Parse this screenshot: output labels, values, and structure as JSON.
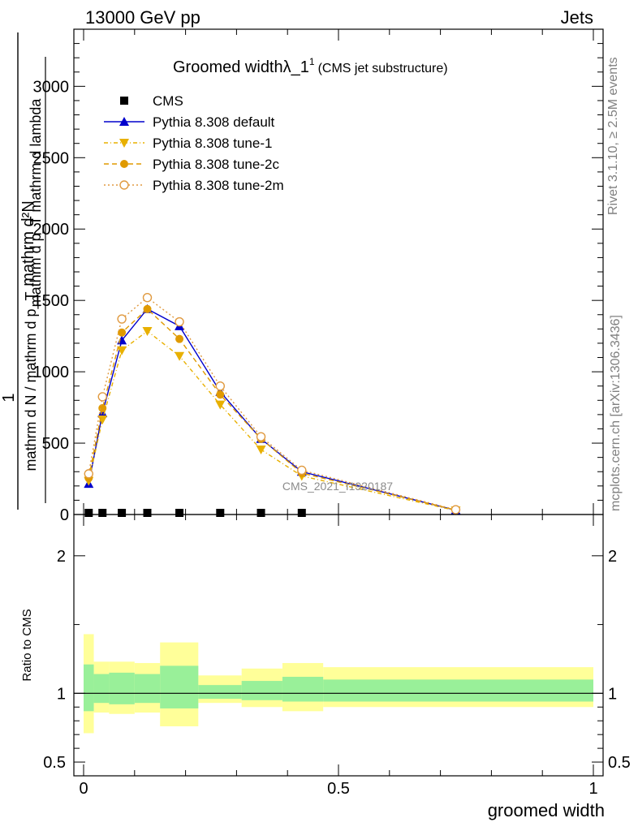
{
  "header": {
    "left": "13000 GeV pp",
    "right": "Jets"
  },
  "side": {
    "rivet": "Rivet 3.1.10, ≥ 2.5M events",
    "source": "mcplots.cern.ch [arXiv:1306.3436]"
  },
  "watermark": "CMS_2021_I1920187",
  "chart_data": [
    {
      "panel": "main",
      "type": "line",
      "title": "Groomed widthλ_1",
      "title_sup": "1",
      "title_note": "(CMS jet substructure)",
      "ylabel_numerator": "mathrm d²N",
      "ylabel_denominator": "mathrm d p_T mathrm d lambda",
      "ylabel_factor": "1",
      "ylabel_lower": "mathrm d N / mathrm d p_T",
      "xlim": [
        0,
        1
      ],
      "ylim": [
        0,
        3400
      ],
      "yticks": [
        0,
        500,
        1000,
        1500,
        2000,
        2500,
        3000
      ],
      "ytick_labels": [
        "0",
        "500",
        "1000",
        "1500",
        "2000",
        "2500",
        "3000"
      ],
      "series": [
        {
          "name": "CMS",
          "color": "#000000",
          "marker": "square",
          "dash": "",
          "x": [
            0.01,
            0.037,
            0.075,
            0.125,
            0.188,
            0.268,
            0.348,
            0.428
          ],
          "y": [
            0,
            0,
            0,
            0,
            0,
            0,
            0,
            0
          ]
        },
        {
          "name": "Pythia 8.308 default",
          "color": "#0000cc",
          "marker": "triangle-up",
          "dash": "",
          "x": [
            0.01,
            0.037,
            0.075,
            0.125,
            0.188,
            0.268,
            0.348,
            0.428,
            0.73
          ],
          "y": [
            215,
            710,
            1220,
            1440,
            1320,
            860,
            530,
            300,
            30
          ]
        },
        {
          "name": "Pythia 8.308 tune-1",
          "color": "#e8b000",
          "marker": "triangle-down",
          "dash": "5,3,1,3",
          "x": [
            0.01,
            0.037,
            0.075,
            0.125,
            0.188,
            0.268,
            0.348,
            0.428,
            0.73
          ],
          "y": [
            235,
            665,
            1150,
            1285,
            1110,
            770,
            455,
            270,
            28
          ]
        },
        {
          "name": "Pythia 8.308 tune-2c",
          "color": "#e09a00",
          "marker": "circle",
          "dash": "6,4",
          "x": [
            0.01,
            0.037,
            0.075,
            0.125,
            0.188,
            0.268,
            0.348,
            0.428,
            0.73
          ],
          "y": [
            255,
            745,
            1275,
            1440,
            1230,
            840,
            530,
            290,
            32
          ]
        },
        {
          "name": "Pythia 8.308 tune-2m",
          "color": "#e09a40",
          "marker": "circle-open",
          "dash": "2,3",
          "x": [
            0.01,
            0.037,
            0.075,
            0.125,
            0.188,
            0.268,
            0.348,
            0.428,
            0.73
          ],
          "y": [
            285,
            825,
            1370,
            1520,
            1350,
            900,
            545,
            310,
            34
          ]
        }
      ]
    },
    {
      "panel": "ratio",
      "type": "area",
      "ylabel": "Ratio to CMS",
      "xlabel": "groomed width",
      "xlim": [
        0,
        1
      ],
      "ylim": [
        0.4,
        2.3
      ],
      "yticks": [
        0.5,
        1,
        2
      ],
      "ytick_labels": [
        "0.5",
        "1",
        "2"
      ],
      "xticks": [
        0,
        0.5,
        1
      ],
      "xtick_labels": [
        "0",
        "0.5",
        "1"
      ],
      "bins": [
        {
          "x0": 0.0,
          "x1": 0.02,
          "stat": [
            0.87,
            1.21
          ],
          "total": [
            0.71,
            1.43
          ]
        },
        {
          "x0": 0.02,
          "x1": 0.05,
          "stat": [
            0.93,
            1.14
          ],
          "total": [
            0.86,
            1.23
          ]
        },
        {
          "x0": 0.05,
          "x1": 0.1,
          "stat": [
            0.92,
            1.15
          ],
          "total": [
            0.85,
            1.23
          ]
        },
        {
          "x0": 0.1,
          "x1": 0.15,
          "stat": [
            0.93,
            1.14
          ],
          "total": [
            0.86,
            1.22
          ]
        },
        {
          "x0": 0.15,
          "x1": 0.225,
          "stat": [
            0.89,
            1.2
          ],
          "total": [
            0.76,
            1.37
          ]
        },
        {
          "x0": 0.225,
          "x1": 0.31,
          "stat": [
            0.96,
            1.06
          ],
          "total": [
            0.93,
            1.13
          ]
        },
        {
          "x0": 0.31,
          "x1": 0.39,
          "stat": [
            0.95,
            1.09
          ],
          "total": [
            0.9,
            1.18
          ]
        },
        {
          "x0": 0.39,
          "x1": 0.47,
          "stat": [
            0.94,
            1.12
          ],
          "total": [
            0.87,
            1.22
          ]
        },
        {
          "x0": 0.47,
          "x1": 1.0,
          "stat": [
            0.94,
            1.1
          ],
          "total": [
            0.9,
            1.19
          ]
        }
      ],
      "stat_color": "#99f099",
      "total_color": "#ffff99"
    }
  ]
}
